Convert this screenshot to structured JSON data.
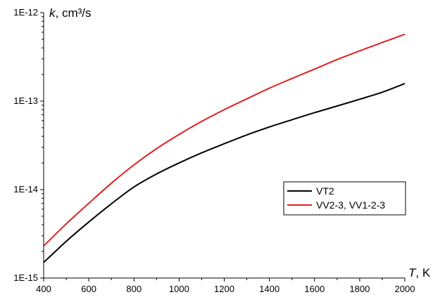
{
  "chart_data": {
    "type": "line",
    "title": "",
    "xlabel": {
      "symbol": "T",
      "unit": ", K"
    },
    "ylabel": {
      "symbol": "k",
      "unit": ", cm³/s"
    },
    "xlim": [
      400,
      2000
    ],
    "ylim": [
      1e-15,
      1e-12
    ],
    "yscale": "log",
    "x_ticks": [
      400,
      600,
      800,
      1000,
      1200,
      1400,
      1600,
      1800,
      2000
    ],
    "x_tick_labels": [
      "400",
      "600",
      "800",
      "1000",
      "1200",
      "1400",
      "1600",
      "1800",
      "2000"
    ],
    "y_ticks": [
      1e-15,
      1e-14,
      1e-13,
      1e-12
    ],
    "y_tick_labels": [
      "1E-15",
      "1E-14",
      "1E-13",
      "1E-12"
    ],
    "grid": false,
    "legend_position": "right-center",
    "x": [
      400,
      500,
      600,
      700,
      800,
      900,
      1000,
      1100,
      1200,
      1300,
      1400,
      1500,
      1600,
      1700,
      1800,
      1900,
      2000
    ],
    "series": [
      {
        "name": "VT2",
        "color": "#000000",
        "values": [
          1.5e-15,
          2.6e-15,
          4.3e-15,
          6.9e-15,
          1.07e-14,
          1.5e-14,
          2e-14,
          2.6e-14,
          3.3e-14,
          4.15e-14,
          5.1e-14,
          6.15e-14,
          7.4e-14,
          8.8e-14,
          1.05e-13,
          1.26e-13,
          1.58e-13
        ]
      },
      {
        "name": "VV2-3, VV1-2-3",
        "color": "#e02020",
        "values": [
          2.3e-15,
          4.1e-15,
          7e-15,
          1.18e-14,
          1.9e-14,
          2.9e-14,
          4.2e-14,
          5.9e-14,
          8e-14,
          1.06e-13,
          1.4e-13,
          1.8e-13,
          2.3e-13,
          2.95e-13,
          3.7e-13,
          4.6e-13,
          5.7e-13
        ]
      }
    ]
  }
}
